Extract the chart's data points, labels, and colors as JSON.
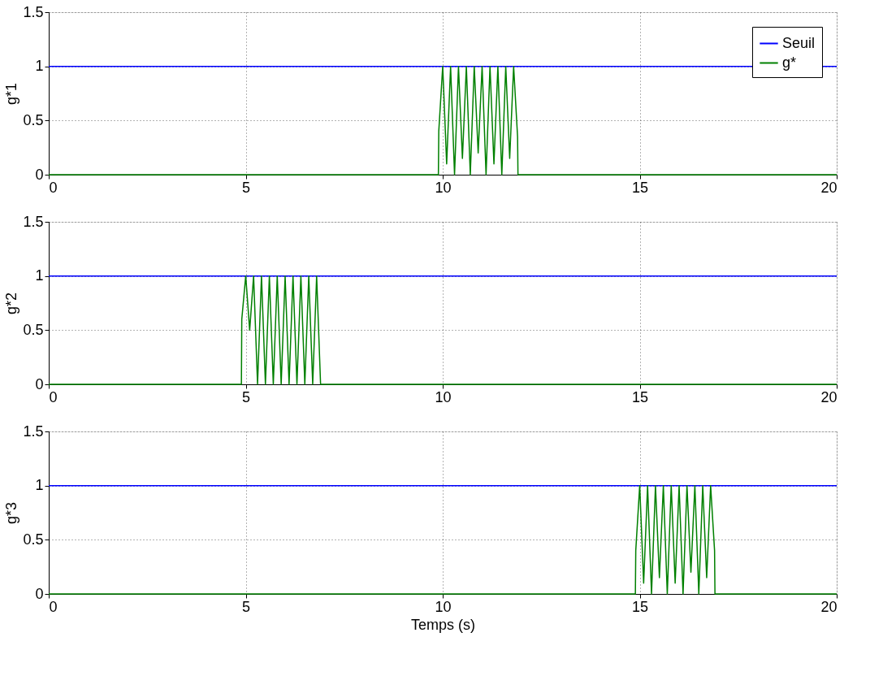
{
  "chart_data": [
    {
      "type": "line",
      "ylabel": "g*1",
      "xlim": [
        0,
        20
      ],
      "xticks": [
        0,
        5,
        10,
        15,
        20
      ],
      "ylim": [
        0,
        1.5
      ],
      "yticks": [
        0,
        0.5,
        1,
        1.5
      ],
      "grid": true,
      "legend": "top right",
      "line_style": "solid",
      "series": [
        {
          "name": "Seuil",
          "color": "#0000ff",
          "x": [
            0,
            20
          ],
          "values": [
            1,
            1
          ]
        },
        {
          "name": "g*",
          "color": "#008000",
          "x": [
            0,
            9.89,
            9.9,
            10.0,
            10.1,
            10.2,
            10.3,
            10.4,
            10.5,
            10.6,
            10.7,
            10.8,
            10.9,
            11.0,
            11.1,
            11.2,
            11.3,
            11.4,
            11.5,
            11.6,
            11.7,
            11.8,
            11.9,
            11.91,
            20
          ],
          "values": [
            0,
            0,
            0.4,
            1,
            0.1,
            1,
            0,
            1,
            0.15,
            1,
            0,
            1,
            0.2,
            1,
            0,
            1,
            0.1,
            1,
            0,
            1,
            0.15,
            1,
            0.35,
            0,
            0
          ]
        }
      ]
    },
    {
      "type": "line",
      "ylabel": "g*2",
      "xlim": [
        0,
        20
      ],
      "xticks": [
        0,
        5,
        10,
        15,
        20
      ],
      "ylim": [
        0,
        1.5
      ],
      "yticks": [
        0,
        0.5,
        1,
        1.5
      ],
      "grid": true,
      "legend": false,
      "line_style": "solid",
      "series": [
        {
          "color": "#0000ff",
          "x": [
            0,
            20
          ],
          "values": [
            1,
            1
          ]
        },
        {
          "color": "#008000",
          "x": [
            0,
            4.89,
            4.9,
            5.0,
            5.1,
            5.2,
            5.3,
            5.4,
            5.5,
            5.6,
            5.7,
            5.8,
            5.9,
            6.0,
            6.1,
            6.2,
            6.3,
            6.4,
            6.5,
            6.6,
            6.7,
            6.8,
            6.9,
            6.91,
            20
          ],
          "values": [
            0,
            0,
            0.6,
            1,
            0.5,
            1,
            0,
            1,
            0,
            1,
            0,
            1,
            0,
            1,
            0,
            1,
            0,
            1,
            0,
            1,
            0,
            1,
            0,
            0,
            0
          ]
        }
      ]
    },
    {
      "type": "line",
      "xlabel": "Temps (s)",
      "ylabel": "g*3",
      "xlim": [
        0,
        20
      ],
      "xticks": [
        0,
        5,
        10,
        15,
        20
      ],
      "ylim": [
        0,
        1.5
      ],
      "yticks": [
        0,
        0.5,
        1,
        1.5
      ],
      "grid": true,
      "legend": false,
      "line_style": "solid",
      "series": [
        {
          "color": "#0000ff",
          "x": [
            0,
            20
          ],
          "values": [
            1,
            1
          ]
        },
        {
          "color": "#008000",
          "x": [
            0,
            14.89,
            14.9,
            15.0,
            15.1,
            15.2,
            15.3,
            15.4,
            15.5,
            15.6,
            15.7,
            15.8,
            15.9,
            16.0,
            16.1,
            16.2,
            16.3,
            16.4,
            16.5,
            16.6,
            16.7,
            16.8,
            16.9,
            16.91,
            20
          ],
          "values": [
            0,
            0,
            0.4,
            1,
            0.1,
            1,
            0,
            1,
            0.15,
            1,
            0,
            1,
            0.1,
            1,
            0,
            1,
            0.2,
            1,
            0,
            1,
            0.15,
            1,
            0.4,
            0,
            0
          ]
        }
      ]
    }
  ]
}
